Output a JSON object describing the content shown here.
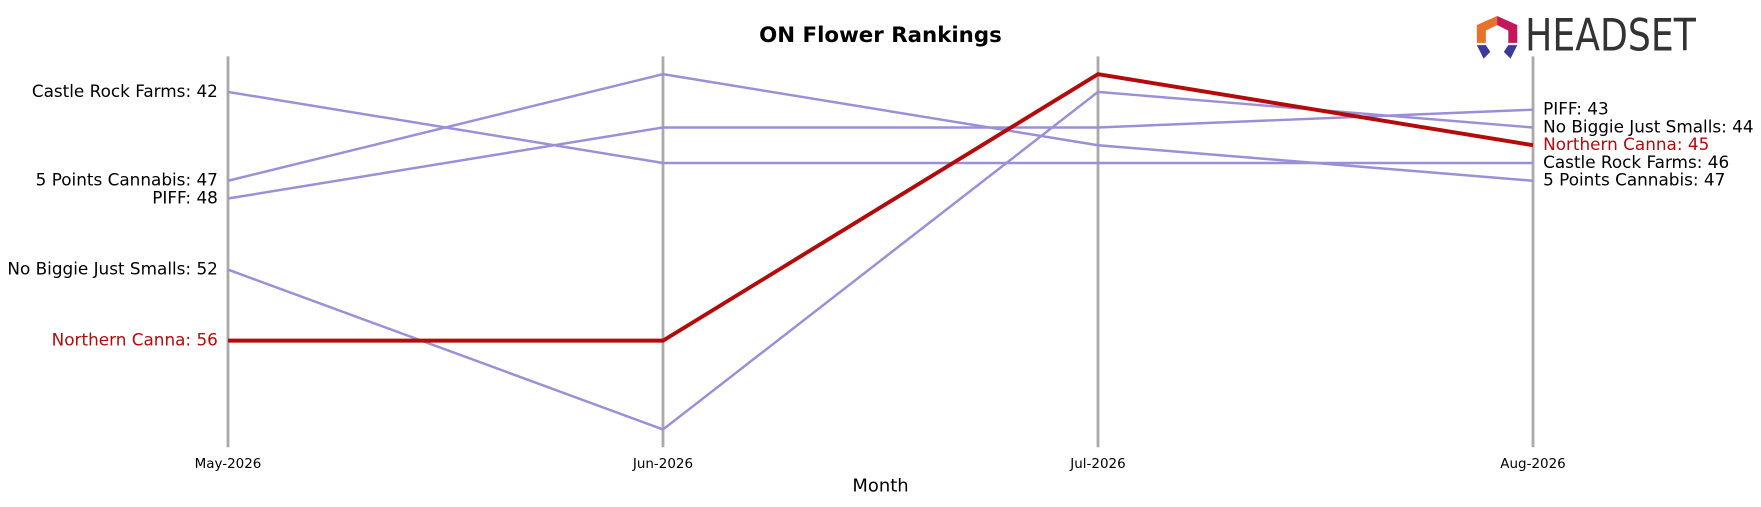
{
  "chart_data": {
    "type": "bump",
    "title": "ON Flower Rankings",
    "x_label": "Month",
    "logo": "HEADSET",
    "categories": [
      "May-2026",
      "Jun-2026",
      "Jul-2026",
      "Aug-2026"
    ],
    "ylim": [
      62,
      40
    ],
    "x_grid": true,
    "series": [
      {
        "name": "Castle Rock Farms",
        "color": "#9b8fd8",
        "values": [
          42,
          46,
          46,
          46
        ],
        "value_labels": [
          "Castle Rock Farms: 42",
          null,
          null,
          "Castle Rock Farms: 46"
        ]
      },
      {
        "name": "5 Points Cannabis",
        "color": "#9b8fd8",
        "values": [
          47,
          41,
          45,
          47
        ],
        "value_labels": [
          "5 Points Cannabis: 47",
          null,
          null,
          "5 Points Cannabis: 47"
        ]
      },
      {
        "name": "PIFF",
        "color": "#9b8fd8",
        "values": [
          48,
          44,
          44,
          43
        ],
        "value_labels": [
          "PIFF: 48",
          null,
          null,
          "PIFF: 43"
        ]
      },
      {
        "name": "No Biggie Just Smalls",
        "color": "#9b8fd8",
        "values": [
          52,
          61,
          42,
          44
        ],
        "value_labels": [
          "No Biggie Just Smalls: 52",
          null,
          null,
          "No Biggie Just Smalls: 44"
        ]
      },
      {
        "name": "Northern Canna",
        "color": "#b30b0b",
        "highlight": true,
        "values": [
          56,
          56,
          41,
          45
        ],
        "value_labels": [
          "Northern Canna: 56",
          null,
          null,
          "Northern Canna: 45"
        ]
      }
    ]
  }
}
